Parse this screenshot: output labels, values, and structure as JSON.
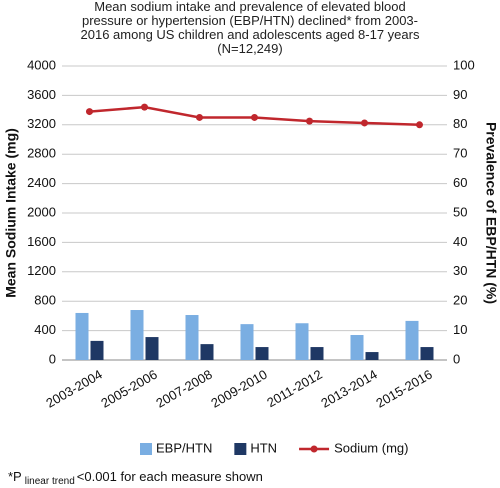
{
  "chart_data": {
    "type": "bar-line",
    "title": "Mean sodium intake and prevalence of elevated blood pressure or hypertension (EBP/HTN) declined* from 2003-2016 among US children and adolescents aged 8-17 years (N=12,249)",
    "y_label": "Mean Sodium Intake (mg)",
    "y2_label": "Prevalence of EBP/HTN (%)",
    "categories": [
      "2003-2004",
      "2005-2006",
      "2007-2008",
      "2009-2010",
      "2011-2012",
      "2013-2014",
      "2015-2016"
    ],
    "series": [
      {
        "name": "EBP/HTN",
        "type": "bar",
        "axis": "y2",
        "color": "#7aaee2",
        "values": [
          16,
          17,
          15.3,
          12.2,
          12.5,
          8.5,
          13.3
        ]
      },
      {
        "name": "HTN",
        "type": "bar",
        "axis": "y2",
        "color": "#1f3864",
        "values": [
          6.5,
          7.8,
          5.4,
          4.4,
          4.4,
          2.7,
          4.4
        ]
      },
      {
        "name": "Sodium (mg)",
        "type": "line",
        "axis": "y",
        "color": "#c0272d",
        "values": [
          3380,
          3440,
          3300,
          3300,
          3250,
          3225,
          3200
        ]
      }
    ],
    "ylim": [
      0,
      4000
    ],
    "yticks": [
      0,
      400,
      800,
      1200,
      1600,
      2000,
      2400,
      2800,
      3200,
      3600,
      4000
    ],
    "y2lim": [
      0,
      100
    ],
    "y2ticks": [
      0,
      10,
      20,
      30,
      40,
      50,
      60,
      70,
      80,
      90,
      100
    ],
    "grid": true,
    "legend": "bottom",
    "footnote": {
      "prefix": "*P",
      "subscript": "linear trend",
      "suffix": "<0.001 for each measure shown"
    }
  }
}
